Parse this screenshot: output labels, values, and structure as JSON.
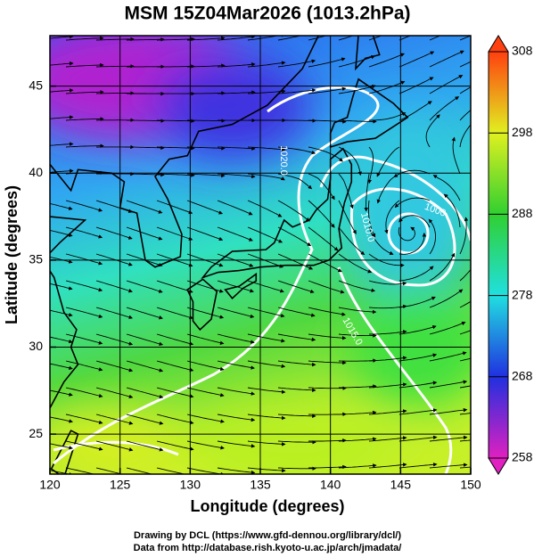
{
  "chart_data": {
    "type": "map",
    "title": "MSM 15Z04Mar2026 (1013.2hPa)",
    "x_label": "Longitude (degrees)",
    "y_label": "Latitude  (degrees)",
    "xlim": [
      120,
      150
    ],
    "ylim": [
      22.7,
      47.9
    ],
    "xticks": [
      120,
      125,
      130,
      135,
      140,
      145,
      150
    ],
    "yticks": [
      25,
      30,
      35,
      40,
      45
    ],
    "grid": true,
    "colorbar": {
      "clim": [
        258,
        308
      ],
      "ticks": [
        258,
        268,
        278,
        288,
        298,
        308
      ],
      "colors": [
        "#e020c0",
        "#2030e0",
        "#20e0e0",
        "#30d030",
        "#e0f020",
        "#ff4010"
      ]
    },
    "annotations": [
      "1020.0",
      "1010.0",
      "1015.0",
      "1000"
    ],
    "credits": [
      "Drawing by DCL (https://www.gfd-dennou.org/library/dcl/)",
      "Data from http://database.rish.kyoto-u.ac.jp/arch/jmadata/"
    ]
  }
}
